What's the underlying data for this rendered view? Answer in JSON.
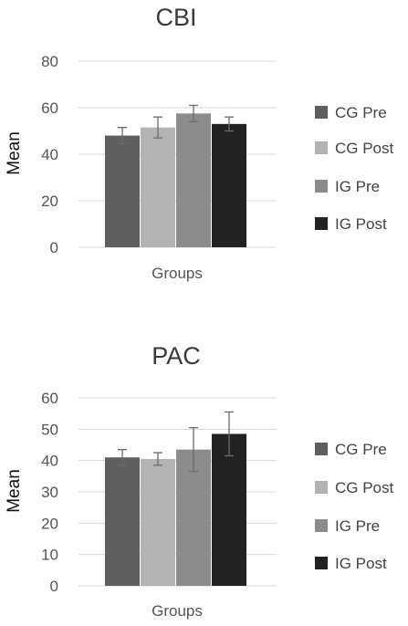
{
  "chart_data": [
    {
      "type": "bar",
      "title": "CBI",
      "xlabel": "Groups",
      "ylabel": "Mean",
      "ylim": [
        0,
        80
      ],
      "yticks": [
        0,
        20,
        40,
        60,
        80
      ],
      "grid": true,
      "legend_position": "right",
      "series": [
        {
          "name": "CG Pre",
          "value": 48,
          "error": 3.5,
          "color": "#5f5f5f"
        },
        {
          "name": "CG Post",
          "value": 51.5,
          "error": 4.5,
          "color": "#b3b3b3"
        },
        {
          "name": "IG Pre",
          "value": 57.5,
          "error": 3.5,
          "color": "#8c8c8c"
        },
        {
          "name": "IG Post",
          "value": 53,
          "error": 3,
          "color": "#222222"
        }
      ]
    },
    {
      "type": "bar",
      "title": "PAC",
      "xlabel": "Groups",
      "ylabel": "Mean",
      "ylim": [
        0,
        60
      ],
      "yticks": [
        0,
        10,
        20,
        30,
        40,
        50,
        60
      ],
      "grid": true,
      "legend_position": "right",
      "series": [
        {
          "name": "CG Pre",
          "value": 41,
          "error": 2.5,
          "color": "#5f5f5f"
        },
        {
          "name": "CG Post",
          "value": 40.5,
          "error": 2,
          "color": "#b3b3b3"
        },
        {
          "name": "IG Pre",
          "value": 43.5,
          "error": 7,
          "color": "#8c8c8c"
        },
        {
          "name": "IG Post",
          "value": 48.5,
          "error": 7,
          "color": "#222222"
        }
      ]
    }
  ]
}
